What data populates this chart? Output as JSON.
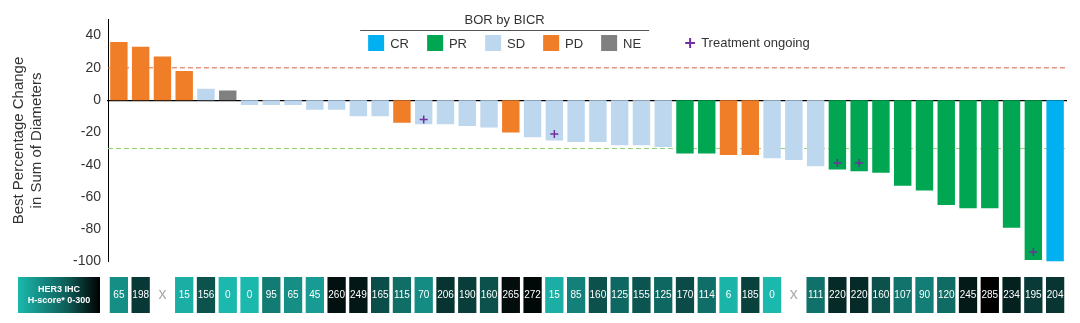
{
  "chart_data": [
    {
      "type": "bar",
      "ylabel": "Best Percentage Change in Sum of Diameters",
      "legend_title": "BOR by BICR",
      "legend": "top",
      "stacked": true,
      "categories": [
        null,
        null,
        null,
        null,
        null,
        null,
        null,
        null,
        null,
        null,
        null,
        null,
        null,
        null,
        null,
        null,
        null,
        null,
        null,
        null,
        null,
        null,
        null,
        null,
        null,
        null,
        null,
        null,
        null,
        null,
        null,
        null,
        null,
        null,
        null,
        null,
        null,
        null,
        null,
        null,
        null,
        null,
        null,
        null
      ],
      "ylim": [
        -100,
        50
      ],
      "yticks": [
        -100,
        -80,
        -60,
        -40,
        -20,
        0,
        20,
        40
      ],
      "series": [
        {
          "name": "CR",
          "color": "#00b0f0",
          "values": [
            null,
            null,
            null,
            null,
            null,
            null,
            null,
            null,
            null,
            null,
            null,
            null,
            null,
            null,
            null,
            null,
            null,
            null,
            null,
            null,
            null,
            null,
            null,
            null,
            null,
            null,
            null,
            null,
            null,
            null,
            null,
            null,
            null,
            null,
            null,
            null,
            null,
            null,
            null,
            null,
            null,
            null,
            null,
            -100
          ]
        },
        {
          "name": "PR",
          "color": "#00a651",
          "values": [
            null,
            null,
            null,
            null,
            null,
            null,
            null,
            null,
            null,
            null,
            null,
            null,
            null,
            null,
            null,
            null,
            null,
            null,
            null,
            null,
            null,
            null,
            null,
            null,
            null,
            null,
            -33,
            -33,
            null,
            null,
            null,
            null,
            null,
            -43,
            -44,
            -45,
            -53,
            -56,
            -65,
            -67,
            -67,
            -79,
            -99,
            null
          ]
        },
        {
          "name": "SD",
          "color": "#bdd7ee",
          "values": [
            null,
            null,
            null,
            null,
            7,
            null,
            -3,
            -3,
            -3,
            -6,
            -6,
            -10,
            -10,
            null,
            -15,
            -15,
            -16,
            -17,
            null,
            -23,
            -25,
            -26,
            -26,
            -28,
            -28,
            -29,
            null,
            null,
            null,
            null,
            -36,
            -37,
            -41,
            null,
            null,
            null,
            null,
            null,
            null,
            null,
            null,
            null,
            null,
            null
          ]
        },
        {
          "name": "PD",
          "color": "#f07d28",
          "values": [
            36,
            33,
            27,
            18,
            null,
            null,
            null,
            null,
            null,
            null,
            null,
            null,
            null,
            -14,
            null,
            null,
            null,
            null,
            -20,
            null,
            null,
            null,
            null,
            null,
            null,
            null,
            null,
            null,
            -34,
            -34,
            null,
            null,
            null,
            null,
            null,
            null,
            null,
            null,
            null,
            null,
            null,
            null,
            null,
            null
          ]
        },
        {
          "name": "NE",
          "color": "#808080",
          "values": [
            null,
            null,
            null,
            null,
            null,
            6,
            null,
            null,
            null,
            null,
            null,
            null,
            null,
            null,
            null,
            null,
            null,
            null,
            null,
            null,
            null,
            null,
            null,
            null,
            null,
            null,
            null,
            null,
            null,
            null,
            null,
            null,
            null,
            null,
            null,
            null,
            null,
            null,
            null,
            null,
            null,
            null,
            null,
            null
          ]
        },
        {
          "name": "Treatment ongoing",
          "type": "scatter",
          "marker": "cross",
          "color": "#7030a0",
          "values": [
            null,
            null,
            null,
            null,
            null,
            null,
            null,
            null,
            null,
            null,
            null,
            null,
            null,
            null,
            -12,
            null,
            null,
            null,
            null,
            null,
            -21,
            null,
            null,
            null,
            null,
            null,
            null,
            null,
            null,
            null,
            null,
            null,
            null,
            -39,
            -39,
            null,
            null,
            null,
            null,
            null,
            null,
            null,
            -94,
            null
          ]
        }
      ],
      "ref_lines": [
        {
          "axis": "y",
          "value": 20,
          "color": "#e06040",
          "line_style": "dashed"
        },
        {
          "axis": "y",
          "value": -30,
          "color": "#8fcf7a",
          "line_style": "dashed"
        }
      ]
    },
    {
      "type": "heatmap",
      "categories": [
        null,
        null,
        null,
        null,
        null,
        null,
        null,
        null,
        null,
        null,
        null,
        null,
        null,
        null,
        null,
        null,
        null,
        null,
        null,
        null,
        null,
        null,
        null,
        null,
        null,
        null,
        null,
        null,
        null,
        null,
        null,
        null,
        null,
        null,
        null,
        null,
        null,
        null,
        null,
        null,
        null,
        null,
        null,
        null
      ],
      "y_categories": [
        "HER3 IHC H-score* 0-300"
      ],
      "colors": [
        "#1bb8ad",
        "#000000"
      ],
      "cells": [
        [
          65,
          198,
          null,
          15,
          156,
          0,
          0,
          95,
          65,
          45,
          260,
          249,
          165,
          115,
          70,
          206,
          190,
          160,
          265,
          272,
          15,
          85,
          160,
          125,
          155,
          125,
          170,
          114,
          6,
          185,
          0,
          null,
          111,
          220,
          220,
          160,
          107,
          90,
          120,
          245,
          285,
          234,
          195,
          204
        ]
      ],
      "cell_labels": [
        [
          "65",
          "198",
          "x",
          "15",
          "156",
          "0",
          "0",
          "95",
          "65",
          "45",
          "260",
          "249",
          "165",
          "115",
          "70",
          "206",
          "190",
          "160",
          "265",
          "272",
          "15",
          "85",
          "160",
          "125",
          "155",
          "125",
          "170",
          "114",
          "6",
          "185",
          "0",
          "x",
          "111",
          "220",
          "220",
          "160",
          "107",
          "90",
          "120",
          "245",
          "285",
          "234",
          "195",
          "204"
        ]
      ]
    }
  ]
}
